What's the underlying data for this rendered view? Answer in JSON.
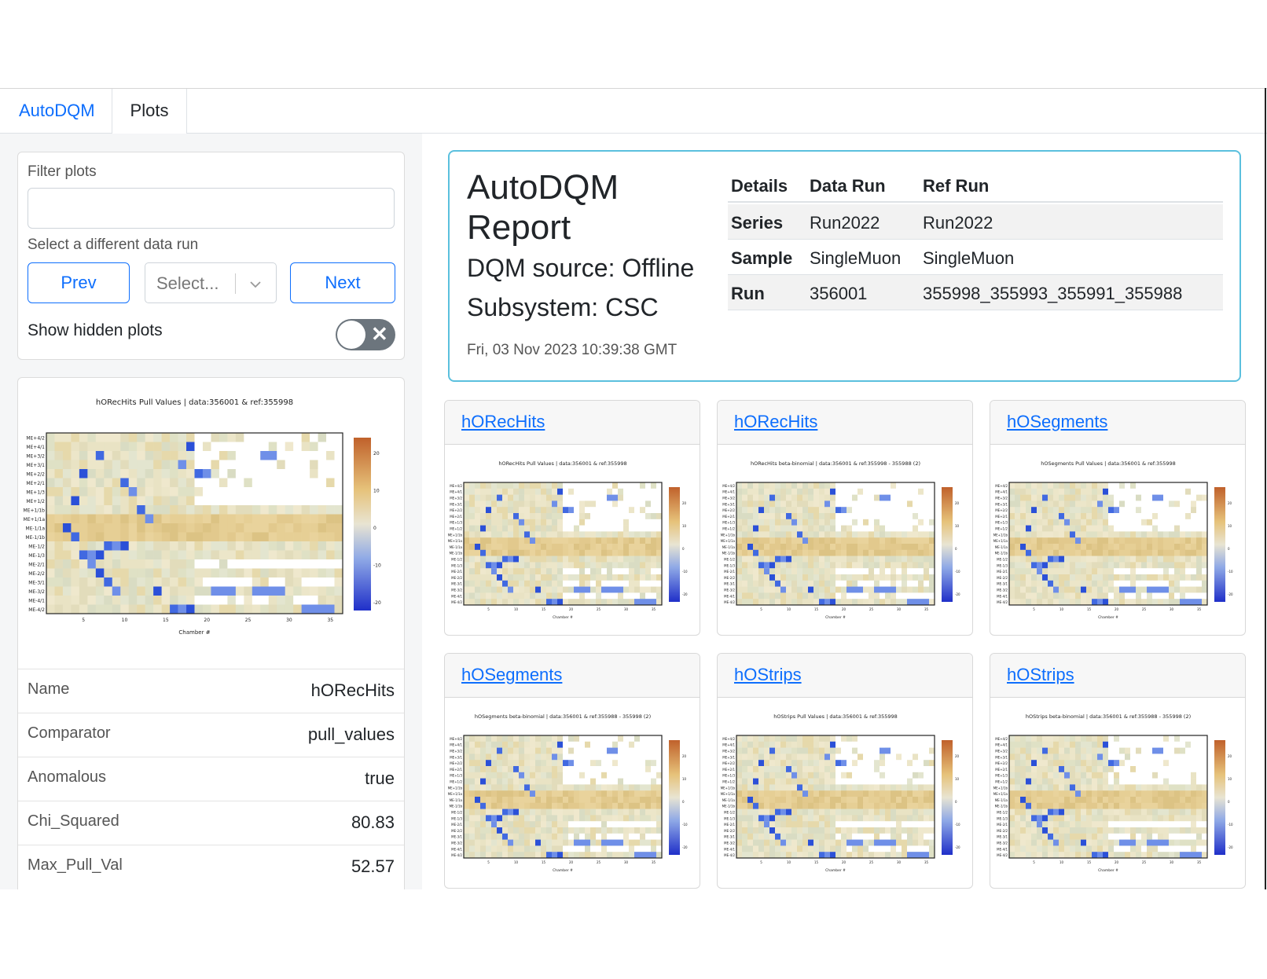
{
  "tabs": [
    {
      "label": "AutoDQM"
    },
    {
      "label": "Plots"
    }
  ],
  "sidebar": {
    "filter_label": "Filter plots",
    "filter_value": "",
    "run_select_label": "Select a different data run",
    "prev_label": "Prev",
    "next_label": "Next",
    "select_placeholder": "Select...",
    "show_hidden_label": "Show hidden plots",
    "show_hidden_on": false
  },
  "selected_plot": {
    "title": "hORecHits Pull Values | data:356001 & ref:355998",
    "xlabel": "Chamber #",
    "y_ticks": [
      "ME+4/2",
      "ME+4/1",
      "ME+3/2",
      "ME+3/1",
      "ME+2/2",
      "ME+2/1",
      "ME+1/3",
      "ME+1/2",
      "ME+1/1b",
      "ME+1/1a",
      "ME-1/1a",
      "ME-1/1b",
      "ME-1/2",
      "ME-1/3",
      "ME-2/1",
      "ME-2/2",
      "ME-3/1",
      "ME-3/2",
      "ME-4/1",
      "ME-4/2"
    ],
    "x_ticks": [
      "5",
      "10",
      "15",
      "20",
      "25",
      "30",
      "35"
    ],
    "colorbar_ticks": [
      "20",
      "10",
      "0",
      "-10",
      "-20"
    ],
    "properties": [
      {
        "key": "Name",
        "value": "hORecHits"
      },
      {
        "key": "Comparator",
        "value": "pull_values"
      },
      {
        "key": "Anomalous",
        "value": "true"
      },
      {
        "key": "Chi_Squared",
        "value": "80.83"
      },
      {
        "key": "Max_Pull_Val",
        "value": "52.57"
      }
    ]
  },
  "report": {
    "title": "AutoDQM Report",
    "dqm_source": "DQM source: Offline",
    "subsystem": "Subsystem: CSC",
    "date": "Fri, 03 Nov 2023 10:39:38 GMT",
    "table": {
      "headers": [
        "Details",
        "Data Run",
        "Ref Run"
      ],
      "rows": [
        [
          "Series",
          "Run2022",
          "Run2022"
        ],
        [
          "Sample",
          "SingleMuon",
          "SingleMuon"
        ],
        [
          "Run",
          "356001",
          "355998_355993_355991_355988"
        ]
      ]
    }
  },
  "plots": [
    {
      "name": "hORecHits",
      "title": "hORecHits Pull Values | data:356001 & ref:355998",
      "seed": 3
    },
    {
      "name": "hORecHits",
      "title": "hORecHits beta-binomial | data:356001 & ref:355998 - 355988 (2)",
      "seed": 5
    },
    {
      "name": "hOSegments",
      "title": "hOSegments Pull Values | data:356001 & ref:355998",
      "seed": 7
    },
    {
      "name": "hOSegments",
      "title": "hOSegments beta-binomial | data:356001 & ref:355988 - 355998 (2)",
      "seed": 11
    },
    {
      "name": "hOStrips",
      "title": "hOStrips Pull Values | data:356001 & ref:355998",
      "seed": 13
    },
    {
      "name": "hOStrips",
      "title": "hOStrips beta-binomial | data:356001 & ref:355988 - 355998 (2)",
      "seed": 17
    }
  ],
  "colors": {
    "accent": "#0d6efd",
    "report_border": "#5bc0de"
  }
}
